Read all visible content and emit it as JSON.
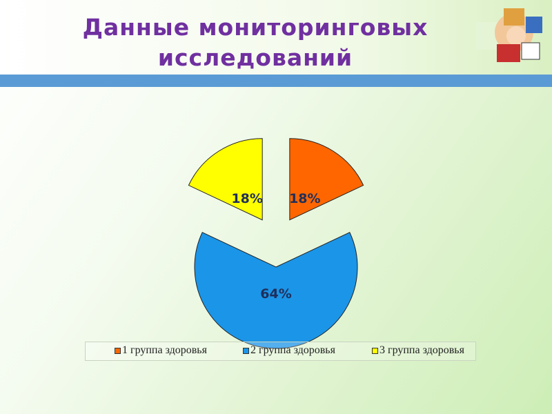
{
  "title": "Данные мониторинговых исследований",
  "colors": {
    "title": "#7030a0",
    "band": "#5b9bd5"
  },
  "decoration": "puzzle-pieces-with-children-image",
  "chart_data": {
    "type": "pie",
    "exploded": true,
    "categories": [
      "1 группа здоровья",
      "2 группа здоровья",
      "3 группа здоровья"
    ],
    "values": [
      18,
      64,
      18
    ],
    "labels": [
      "18%",
      "64%",
      "18%"
    ],
    "colors": [
      "#ff6600",
      "#1b95e8",
      "#ffff00"
    ],
    "legend_position": "bottom"
  }
}
